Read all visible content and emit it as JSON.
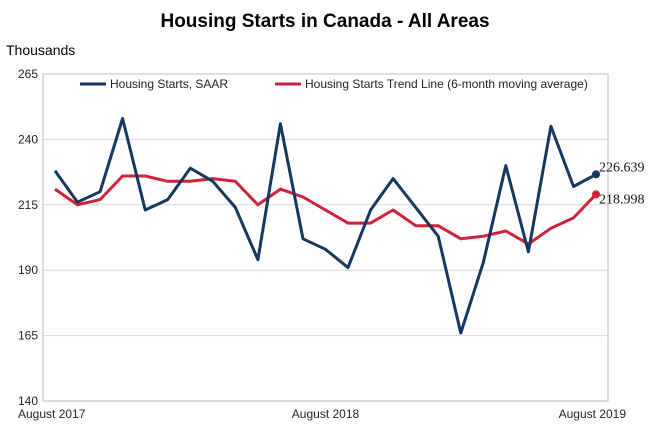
{
  "chart_data": {
    "type": "line",
    "title": "Housing Starts in Canada - All Areas",
    "ylabel": "Thousands",
    "ylim": [
      140,
      265
    ],
    "yticks": [
      "140",
      "165",
      "190",
      "215",
      "240",
      "265"
    ],
    "x_tick_labels": [
      "August 2017",
      "August 2018",
      "August 2019"
    ],
    "grid": "horizontal",
    "legend_position": "top",
    "x": [
      "2017-08",
      "2017-09",
      "2017-10",
      "2017-11",
      "2017-12",
      "2018-01",
      "2018-02",
      "2018-03",
      "2018-04",
      "2018-05",
      "2018-06",
      "2018-07",
      "2018-08",
      "2018-09",
      "2018-10",
      "2018-11",
      "2018-12",
      "2019-01",
      "2019-02",
      "2019-03",
      "2019-04",
      "2019-05",
      "2019-06",
      "2019-07",
      "2019-08"
    ],
    "series": [
      {
        "name": "Housing Starts, SAAR",
        "color": "#17375e",
        "values": [
          228,
          216,
          220,
          248,
          213,
          217,
          229,
          224,
          214,
          194,
          246,
          202,
          198,
          191,
          213,
          225,
          214,
          203,
          166,
          193,
          230,
          197,
          245,
          222,
          226.639
        ]
      },
      {
        "name": "Housing Starts Trend Line (6-month moving average)",
        "color": "#d0223a",
        "values": [
          221,
          215,
          217,
          226,
          226,
          224,
          224,
          225,
          224,
          215,
          221,
          218,
          213,
          208,
          208,
          213,
          207,
          207,
          202,
          203,
          205,
          200,
          206,
          210,
          218.998
        ]
      }
    ],
    "end_labels": [
      "226.639",
      "218.998"
    ]
  }
}
